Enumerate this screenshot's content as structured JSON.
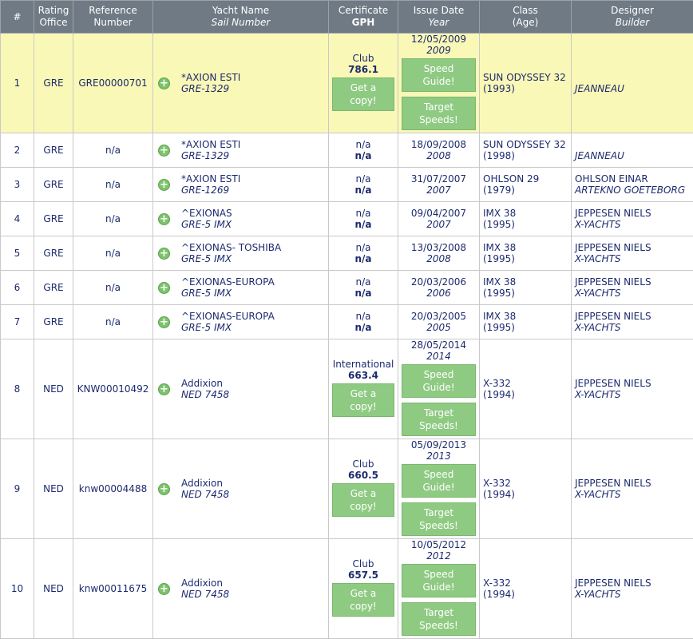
{
  "headers": {
    "num": "#",
    "rating_office": [
      "Rating",
      "Office"
    ],
    "reference": [
      "Reference",
      "Number"
    ],
    "yacht": [
      "Yacht Name",
      "Sail Number"
    ],
    "certificate": [
      "Certificate",
      "GPH"
    ],
    "issue": [
      "Issue Date",
      "Year"
    ],
    "class": [
      "Class",
      "(Age)"
    ],
    "designer": [
      "Designer",
      "Builder"
    ]
  },
  "labels": {
    "get_copy": "Get a copy!",
    "speed_guide": "Speed Guide!",
    "target_speeds": "Target Speeds!"
  },
  "rows": [
    {
      "num": "1",
      "office": "GRE",
      "ref": "GRE00000701",
      "name": "*AXION ESTI",
      "sail": "GRE-1329",
      "cert_type": "Club",
      "gph": "786.1",
      "date": "12/05/2009",
      "year": "2009",
      "cls": "SUN ODYSSEY 32",
      "age": "(1993)",
      "designer": "",
      "builder": "JEANNEAU"
    },
    {
      "num": "2",
      "office": "GRE",
      "ref": "n/a",
      "name": "*AXION ESTI",
      "sail": "GRE-1329",
      "cert_type": "n/a",
      "gph": "n/a",
      "date": "18/09/2008",
      "year": "2008",
      "cls": "SUN ODYSSEY 32",
      "age": "(1998)",
      "designer": "",
      "builder": "JEANNEAU"
    },
    {
      "num": "3",
      "office": "GRE",
      "ref": "n/a",
      "name": "*AXION ESTI",
      "sail": "GRE-1269",
      "cert_type": "n/a",
      "gph": "n/a",
      "date": "31/07/2007",
      "year": "2007",
      "cls": "OHLSON 29",
      "age": "(1979)",
      "designer": "OHLSON EINAR",
      "builder": "ARTEKNO GOETEBORG"
    },
    {
      "num": "4",
      "office": "GRE",
      "ref": "n/a",
      "name": "^EXIONAS",
      "sail": "GRE-5 IMX",
      "cert_type": "n/a",
      "gph": "n/a",
      "date": "09/04/2007",
      "year": "2007",
      "cls": "IMX 38",
      "age": "(1995)",
      "designer": "JEPPESEN NIELS",
      "builder": "X-YACHTS"
    },
    {
      "num": "5",
      "office": "GRE",
      "ref": "n/a",
      "name": "^EXIONAS- TOSHIBA",
      "sail": "GRE-5 IMX",
      "cert_type": "n/a",
      "gph": "n/a",
      "date": "13/03/2008",
      "year": "2008",
      "cls": "IMX 38",
      "age": "(1995)",
      "designer": "JEPPESEN NIELS",
      "builder": "X-YACHTS"
    },
    {
      "num": "6",
      "office": "GRE",
      "ref": "n/a",
      "name": "^EXIONAS-EUROPA",
      "sail": "GRE-5 IMX",
      "cert_type": "n/a",
      "gph": "n/a",
      "date": "20/03/2006",
      "year": "2006",
      "cls": "IMX 38",
      "age": "(1995)",
      "designer": "JEPPESEN NIELS",
      "builder": "X-YACHTS"
    },
    {
      "num": "7",
      "office": "GRE",
      "ref": "n/a",
      "name": "^EXIONAS-EUROPA",
      "sail": "GRE-5 IMX",
      "cert_type": "n/a",
      "gph": "n/a",
      "date": "20/03/2005",
      "year": "2005",
      "cls": "IMX 38",
      "age": "(1995)",
      "designer": "JEPPESEN NIELS",
      "builder": "X-YACHTS"
    },
    {
      "num": "8",
      "office": "NED",
      "ref": "KNW00010492",
      "name": "Addixion",
      "sail": "NED 7458",
      "cert_type": "International",
      "gph": "663.4",
      "date": "28/05/2014",
      "year": "2014",
      "cls": "X-332",
      "age": "(1994)",
      "designer": "JEPPESEN NIELS",
      "builder": "X-YACHTS"
    },
    {
      "num": "9",
      "office": "NED",
      "ref": "knw00004488",
      "name": "Addixion",
      "sail": "NED 7458",
      "cert_type": "Club",
      "gph": "660.5",
      "date": "05/09/2013",
      "year": "2013",
      "cls": "X-332",
      "age": "(1994)",
      "designer": "JEPPESEN NIELS",
      "builder": "X-YACHTS"
    },
    {
      "num": "10",
      "office": "NED",
      "ref": "knw00011675",
      "name": "Addixion",
      "sail": "NED 7458",
      "cert_type": "Club",
      "gph": "657.5",
      "date": "10/05/2012",
      "year": "2012",
      "cls": "X-332",
      "age": "(1994)",
      "designer": "JEPPESEN NIELS",
      "builder": "X-YACHTS"
    }
  ]
}
